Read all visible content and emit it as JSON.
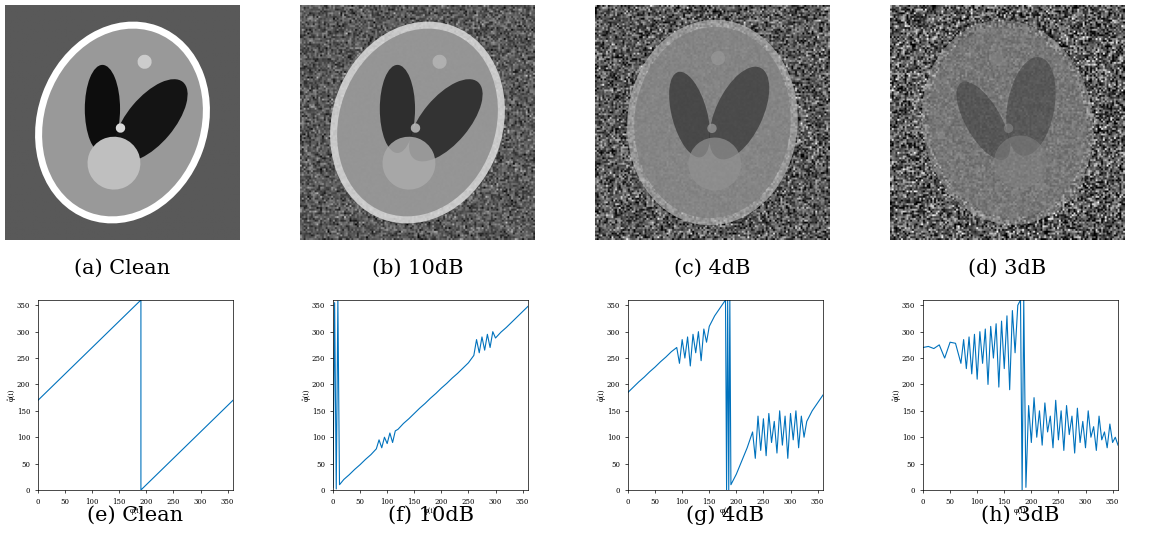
{
  "images": [
    {
      "caption": "(a) Clean"
    },
    {
      "caption": "(b) 10dB"
    },
    {
      "caption": "(c) 4dB"
    },
    {
      "caption": "(d) 3dB"
    }
  ],
  "chart_data": [
    {
      "type": "line",
      "caption": "(e) Clean",
      "x_label": "φ(i)",
      "y_label": "φ̂(i)",
      "color": "#0072bd",
      "xlim": [
        0,
        360
      ],
      "ylim": [
        0,
        360
      ],
      "xticks": [
        0,
        50,
        100,
        150,
        200,
        250,
        300,
        350
      ],
      "yticks": [
        0,
        50,
        100,
        150,
        200,
        250,
        300,
        350
      ],
      "x": [
        0,
        10,
        20,
        30,
        40,
        50,
        60,
        70,
        80,
        90,
        100,
        110,
        120,
        130,
        140,
        150,
        160,
        170,
        180,
        190,
        190,
        200,
        210,
        220,
        230,
        240,
        250,
        260,
        270,
        280,
        290,
        300,
        310,
        320,
        330,
        340,
        350,
        360
      ],
      "values": [
        170,
        180,
        190,
        200,
        210,
        220,
        230,
        240,
        250,
        260,
        270,
        280,
        290,
        300,
        310,
        320,
        330,
        340,
        350,
        360,
        0,
        10,
        20,
        30,
        40,
        50,
        60,
        70,
        80,
        90,
        100,
        110,
        120,
        130,
        140,
        150,
        160,
        170
      ]
    },
    {
      "type": "line",
      "caption": "(f) 10dB",
      "x_label": "φ(i)",
      "y_label": "φ̂(i)",
      "color": "#0072bd",
      "xlim": [
        0,
        360
      ],
      "ylim": [
        0,
        360
      ],
      "xticks": [
        0,
        50,
        100,
        150,
        200,
        250,
        300,
        350
      ],
      "yticks": [
        0,
        50,
        100,
        150,
        200,
        250,
        300,
        350
      ],
      "x": [
        0,
        3,
        6,
        9,
        12,
        20,
        30,
        40,
        50,
        60,
        70,
        80,
        85,
        90,
        95,
        100,
        105,
        110,
        115,
        120,
        130,
        140,
        150,
        160,
        170,
        180,
        190,
        200,
        210,
        220,
        230,
        240,
        250,
        260,
        265,
        270,
        275,
        280,
        285,
        290,
        295,
        300,
        310,
        320,
        330,
        340,
        350,
        360
      ],
      "values": [
        5,
        355,
        2,
        358,
        10,
        20,
        29,
        39,
        48,
        58,
        67,
        78,
        95,
        80,
        100,
        88,
        108,
        90,
        112,
        115,
        126,
        135,
        145,
        155,
        164,
        174,
        183,
        193,
        202,
        212,
        221,
        231,
        241,
        255,
        285,
        260,
        290,
        265,
        295,
        270,
        300,
        288,
        299,
        308,
        318,
        328,
        338,
        348
      ]
    },
    {
      "type": "line",
      "caption": "(g) 4dB",
      "x_label": "φ(i)",
      "y_label": "φ̂(i)",
      "color": "#0072bd",
      "xlim": [
        0,
        360
      ],
      "ylim": [
        0,
        360
      ],
      "xticks": [
        0,
        50,
        100,
        150,
        200,
        250,
        300,
        350
      ],
      "yticks": [
        0,
        50,
        100,
        150,
        200,
        250,
        300,
        350
      ],
      "x": [
        0,
        10,
        20,
        30,
        40,
        50,
        60,
        70,
        80,
        90,
        95,
        100,
        105,
        110,
        115,
        120,
        125,
        130,
        135,
        140,
        145,
        150,
        160,
        170,
        180,
        182,
        184,
        186,
        188,
        190,
        200,
        210,
        220,
        230,
        235,
        240,
        245,
        250,
        255,
        260,
        265,
        270,
        275,
        280,
        285,
        290,
        295,
        300,
        305,
        310,
        315,
        320,
        325,
        330,
        340,
        350,
        360
      ],
      "values": [
        185,
        195,
        205,
        214,
        224,
        233,
        243,
        252,
        262,
        270,
        240,
        285,
        250,
        290,
        235,
        295,
        260,
        300,
        245,
        305,
        280,
        310,
        330,
        345,
        360,
        0,
        360,
        0,
        360,
        10,
        30,
        55,
        80,
        110,
        60,
        140,
        75,
        135,
        65,
        145,
        90,
        130,
        70,
        150,
        85,
        140,
        60,
        145,
        95,
        150,
        80,
        140,
        100,
        130,
        150,
        165,
        180
      ]
    },
    {
      "type": "line",
      "caption": "(h) 3dB",
      "x_label": "φ(i)",
      "y_label": "φ̂(i)",
      "color": "#0072bd",
      "xlim": [
        0,
        360
      ],
      "ylim": [
        0,
        360
      ],
      "xticks": [
        0,
        50,
        100,
        150,
        200,
        250,
        300,
        350
      ],
      "yticks": [
        0,
        50,
        100,
        150,
        200,
        250,
        300,
        350
      ],
      "x": [
        0,
        10,
        20,
        30,
        40,
        50,
        60,
        70,
        75,
        80,
        85,
        90,
        95,
        100,
        105,
        110,
        115,
        120,
        125,
        130,
        135,
        140,
        145,
        150,
        155,
        160,
        165,
        170,
        175,
        180,
        183,
        186,
        190,
        195,
        200,
        205,
        210,
        215,
        220,
        225,
        230,
        235,
        240,
        245,
        250,
        255,
        260,
        265,
        270,
        275,
        280,
        285,
        290,
        295,
        300,
        305,
        310,
        315,
        320,
        325,
        330,
        335,
        340,
        345,
        350,
        355,
        360
      ],
      "values": [
        270,
        272,
        268,
        275,
        250,
        280,
        278,
        240,
        285,
        230,
        290,
        220,
        295,
        210,
        300,
        240,
        305,
        200,
        310,
        250,
        315,
        195,
        320,
        230,
        330,
        190,
        340,
        260,
        350,
        360,
        0,
        360,
        5,
        160,
        90,
        175,
        100,
        150,
        85,
        165,
        110,
        140,
        80,
        170,
        95,
        150,
        75,
        160,
        105,
        140,
        70,
        155,
        90,
        130,
        80,
        150,
        100,
        120,
        75,
        140,
        95,
        110,
        80,
        125,
        90,
        100,
        85
      ]
    }
  ]
}
